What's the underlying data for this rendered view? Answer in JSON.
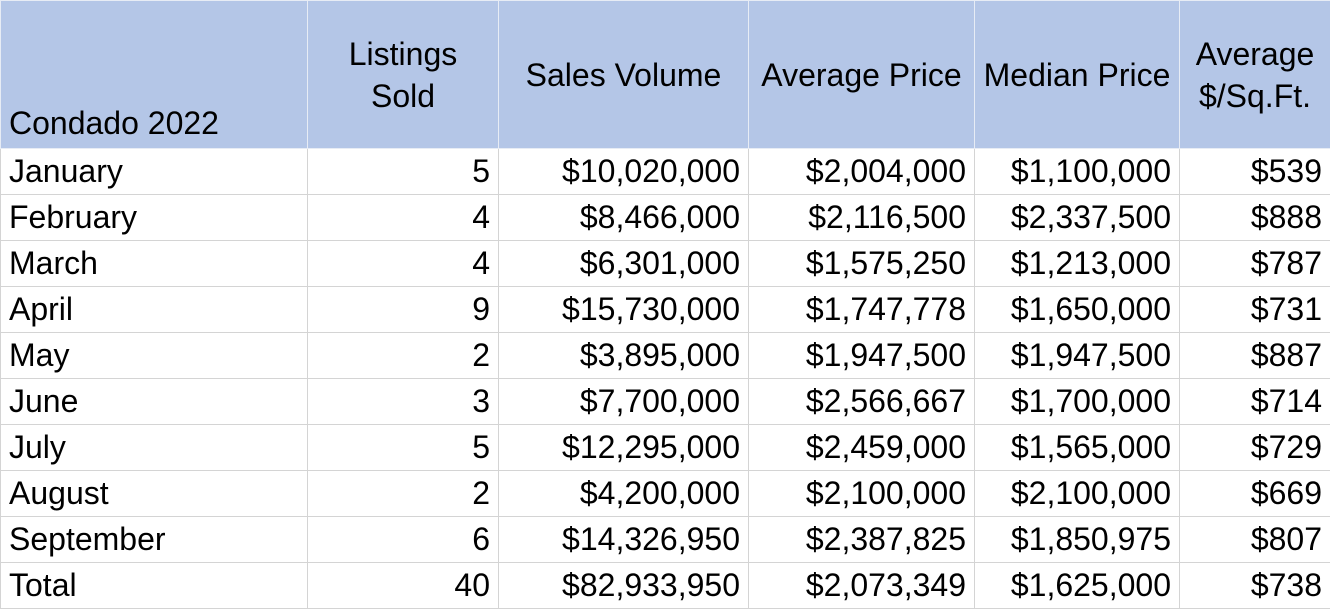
{
  "table": {
    "headers": [
      "Condado 2022",
      "Listings Sold",
      "Sales Volume",
      "Average Price",
      "Median Price",
      "Average $/Sq.Ft."
    ],
    "rows": [
      [
        "January",
        "5",
        "$10,020,000",
        "$2,004,000",
        "$1,100,000",
        "$539"
      ],
      [
        "February",
        "4",
        "$8,466,000",
        "$2,116,500",
        "$2,337,500",
        "$888"
      ],
      [
        "March",
        "4",
        "$6,301,000",
        "$1,575,250",
        "$1,213,000",
        "$787"
      ],
      [
        "April",
        "9",
        "$15,730,000",
        "$1,747,778",
        "$1,650,000",
        "$731"
      ],
      [
        "May",
        "2",
        "$3,895,000",
        "$1,947,500",
        "$1,947,500",
        "$887"
      ],
      [
        "June",
        "3",
        "$7,700,000",
        "$2,566,667",
        "$1,700,000",
        "$714"
      ],
      [
        "July",
        "5",
        "$12,295,000",
        "$2,459,000",
        "$1,565,000",
        "$729"
      ],
      [
        "August",
        "2",
        "$4,200,000",
        "$2,100,000",
        "$2,100,000",
        "$669"
      ],
      [
        "September",
        "6",
        "$14,326,950",
        "$2,387,825",
        "$1,850,975",
        "$807"
      ],
      [
        "Total",
        "40",
        "$82,933,950",
        "$2,073,349",
        "$1,625,000",
        "$738"
      ]
    ],
    "header_bg": "#b4c6e7"
  }
}
